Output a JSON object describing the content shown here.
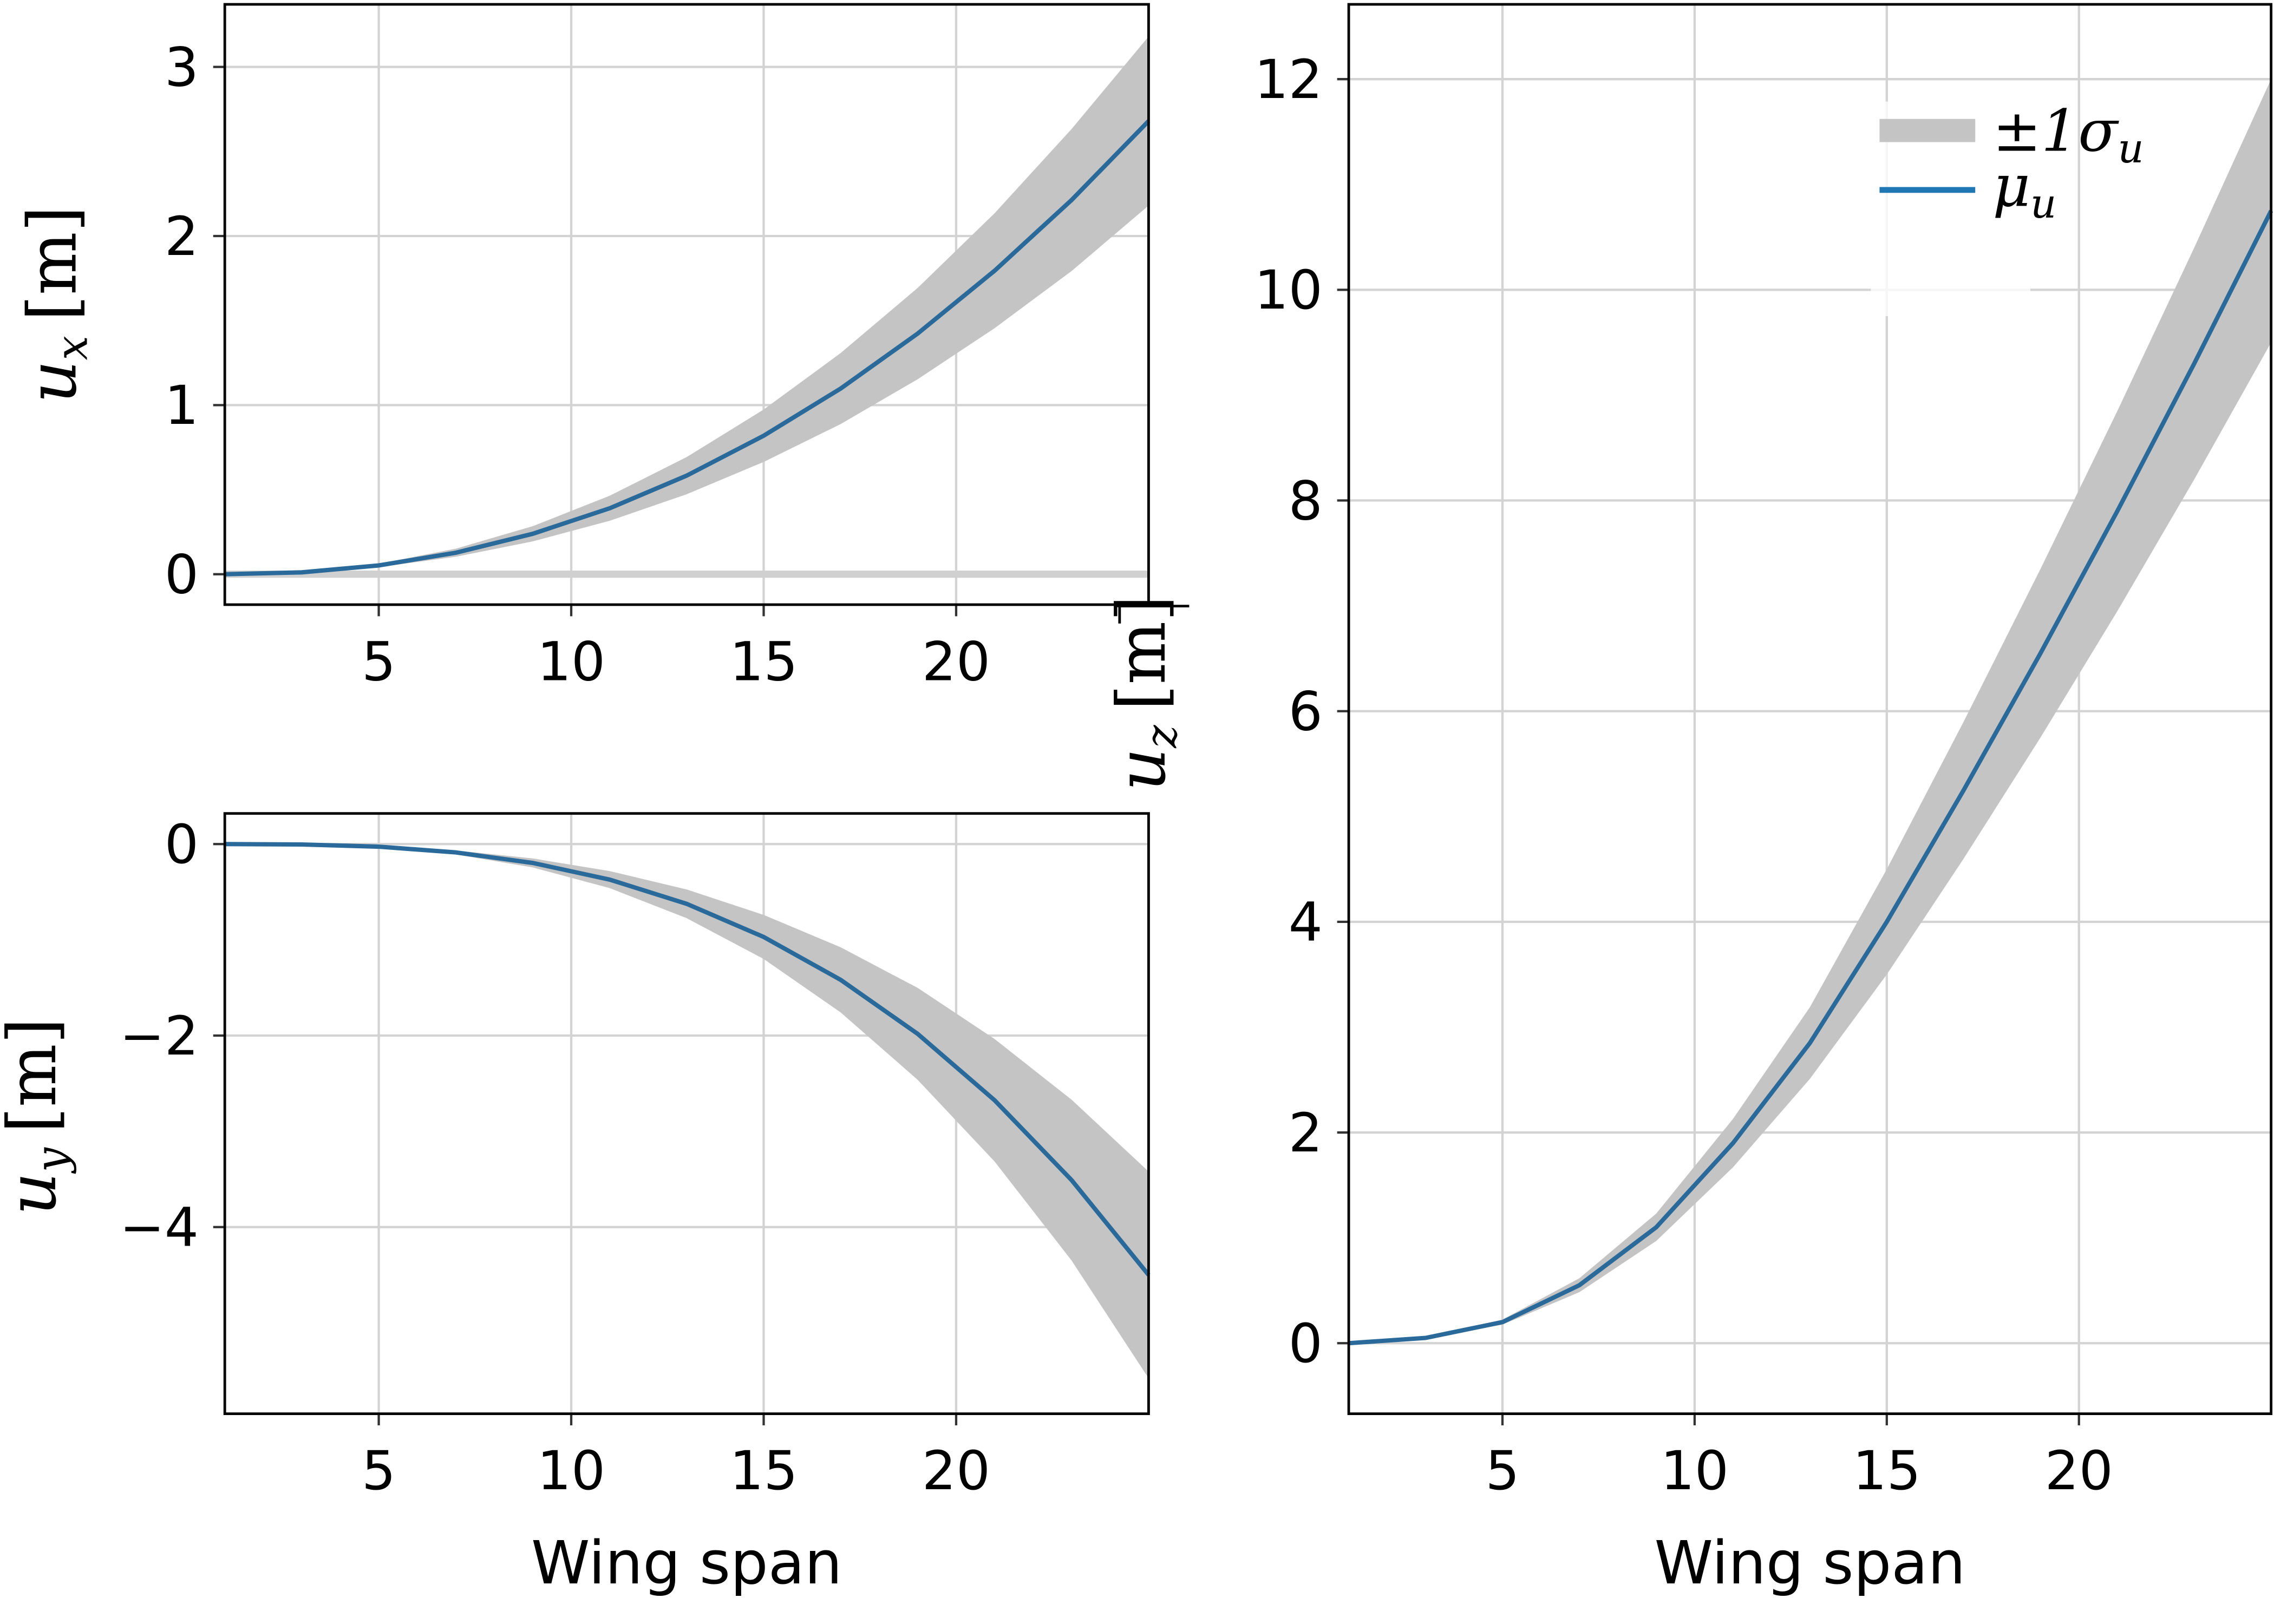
{
  "chart_data": [
    {
      "type": "line",
      "panel": "top-left",
      "x": [
        1,
        3,
        5,
        7,
        9,
        11,
        13,
        15,
        17,
        19,
        21,
        23,
        25
      ],
      "series": [
        {
          "name": "μ_u",
          "values": [
            0,
            0.011,
            0.052,
            0.127,
            0.239,
            0.39,
            0.583,
            0.819,
            1.098,
            1.423,
            1.795,
            2.213,
            2.68
          ]
        },
        {
          "name": "±1σ_u",
          "std": [
            0,
            0.002,
            0.01,
            0.024,
            0.045,
            0.074,
            0.11,
            0.155,
            0.21,
            0.27,
            0.34,
            0.42,
            0.5
          ]
        }
      ],
      "xlabel": "",
      "ylabel": {
        "symbol": "u",
        "sub": "x",
        "unit": "[m]"
      },
      "xlim": [
        1,
        25
      ],
      "ylim": [
        -0.18,
        3.37
      ],
      "xticks": [
        "5",
        "10",
        "15",
        "20"
      ],
      "xtick_values": [
        5,
        10,
        15,
        20
      ],
      "yticks": [
        "0",
        "1",
        "2",
        "3"
      ],
      "ytick_values": [
        0,
        1,
        2,
        3
      ],
      "grid": true
    },
    {
      "type": "line",
      "panel": "bottom-left",
      "x": [
        1,
        3,
        5,
        7,
        9,
        11,
        13,
        15,
        17,
        19,
        21,
        23,
        25
      ],
      "series": [
        {
          "name": "μ_u",
          "values": [
            0,
            -0.004,
            -0.027,
            -0.087,
            -0.197,
            -0.371,
            -0.624,
            -0.97,
            -1.418,
            -1.982,
            -2.676,
            -3.51,
            -4.5
          ]
        },
        {
          "name": "±1σ_u",
          "std": [
            0,
            0.001,
            0.006,
            0.021,
            0.047,
            0.089,
            0.15,
            0.23,
            0.34,
            0.48,
            0.64,
            0.84,
            1.08
          ]
        }
      ],
      "xlabel": "Wing span",
      "ylabel": {
        "symbol": "u",
        "sub": "y",
        "unit": "[m]"
      },
      "xlim": [
        1,
        25
      ],
      "ylim": [
        -5.95,
        0.32
      ],
      "xticks": [
        "5",
        "10",
        "15",
        "20"
      ],
      "xtick_values": [
        5,
        10,
        15,
        20
      ],
      "yticks": [
        "0",
        "−2",
        "−4"
      ],
      "ytick_values": [
        0,
        -2,
        -4
      ],
      "grid": true
    },
    {
      "type": "line",
      "panel": "right",
      "x": [
        1,
        3,
        5,
        7,
        9,
        11,
        13,
        15,
        17,
        19,
        21,
        23,
        25
      ],
      "series": [
        {
          "name": "μ_u",
          "values": [
            0,
            0.05,
            0.2,
            0.55,
            1.1,
            1.9,
            2.85,
            4.0,
            5.25,
            6.55,
            7.9,
            9.3,
            10.75
          ]
        },
        {
          "name": "±1σ_u",
          "std": [
            0,
            0.006,
            0.024,
            0.066,
            0.13,
            0.23,
            0.34,
            0.5,
            0.65,
            0.8,
            0.95,
            1.1,
            1.25
          ]
        }
      ],
      "xlabel": "Wing span",
      "ylabel": {
        "symbol": "u",
        "sub": "z",
        "unit": "[m]"
      },
      "xlim": [
        1,
        25
      ],
      "ylim": [
        -0.67,
        12.71
      ],
      "xticks": [
        "5",
        "10",
        "15",
        "20"
      ],
      "xtick_values": [
        5,
        10,
        15,
        20
      ],
      "yticks": [
        "0",
        "2",
        "4",
        "6",
        "8",
        "10",
        "12"
      ],
      "ytick_values": [
        0,
        2,
        4,
        6,
        8,
        10,
        12
      ],
      "grid": true,
      "legend": {
        "placement": "top-right",
        "entries": [
          {
            "symbol": "±1σ",
            "sub": "u",
            "kind": "band"
          },
          {
            "symbol": "μ",
            "sub": "u",
            "kind": "line"
          }
        ]
      }
    }
  ],
  "colors": {
    "mean": "#2a6a9a",
    "legend_line": "#1f77b4",
    "band": "#c4c4c4",
    "grid": "#d3d3d3"
  }
}
